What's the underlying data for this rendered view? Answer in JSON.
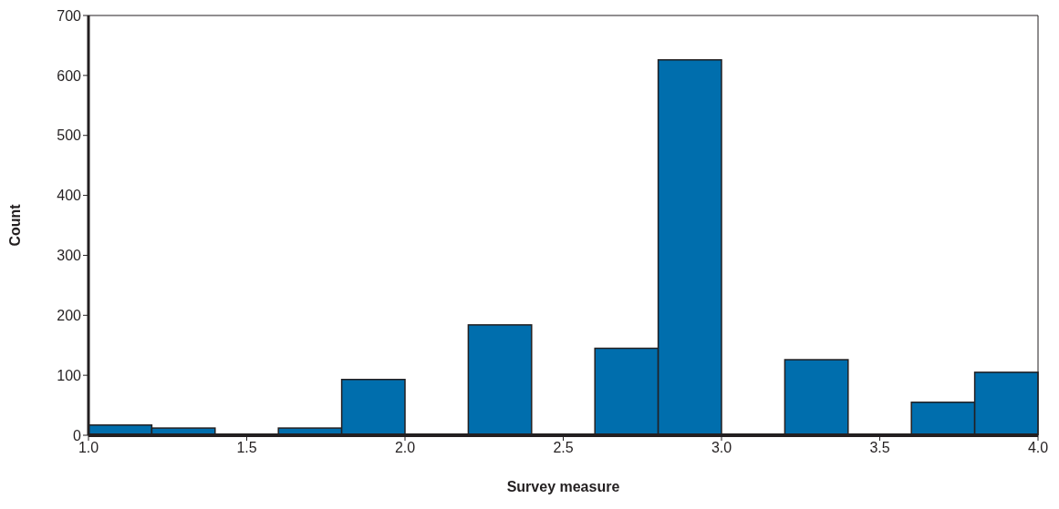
{
  "chart_data": {
    "type": "histogram",
    "xlabel": "Survey measure",
    "ylabel": "Count",
    "bins": [
      1.0,
      1.2,
      1.4,
      1.6,
      1.8,
      2.0,
      2.2,
      2.4,
      2.6,
      2.8,
      3.0,
      3.2,
      3.4,
      3.6,
      3.8,
      4.0
    ],
    "values": [
      17,
      12,
      0,
      12,
      93,
      0,
      184,
      0,
      145,
      626,
      0,
      126,
      0,
      55,
      105
    ],
    "color": "#006ead",
    "xlim": [
      1.0,
      4.0
    ],
    "xticks": [
      {
        "value": 1.0,
        "label": "1.0"
      },
      {
        "value": 1.5,
        "label": "1.5"
      },
      {
        "value": 2.0,
        "label": "2.0"
      },
      {
        "value": 2.5,
        "label": "2.5"
      },
      {
        "value": 3.0,
        "label": "3.0"
      },
      {
        "value": 3.5,
        "label": "3.5"
      },
      {
        "value": 4.0,
        "label": "4.0"
      }
    ],
    "ylim": [
      0,
      700
    ],
    "yticks": [
      0,
      100,
      200,
      300,
      400,
      500,
      600,
      700
    ],
    "grid": false,
    "legend": false
  }
}
